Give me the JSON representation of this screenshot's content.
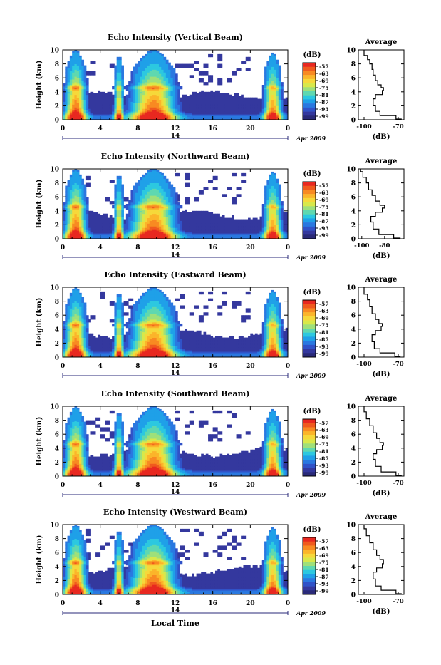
{
  "figure": {
    "xlabel": "Local Time",
    "date_label": "Apr 2009",
    "day_label": "14",
    "colorbar_label": "(dB)",
    "avg_title": "Average",
    "avg_xlabel": "(dB)"
  },
  "colorbar": {
    "ticks": [
      "-57",
      "-63",
      "-69",
      "-75",
      "-81",
      "-87",
      "-93",
      "-99"
    ],
    "colors": [
      "#e82820",
      "#f05a1e",
      "#f88a22",
      "#fbb52a",
      "#f6d83a",
      "#d8e84a",
      "#9fe07a",
      "#5fd8b0",
      "#2cc8e0",
      "#1fa0e8",
      "#2a78e0",
      "#3052c8",
      "#34389e",
      "#2a2a78"
    ]
  },
  "chart_data": [
    {
      "type": "heatmap",
      "title": "Echo Intensity (Vertical Beam)",
      "ylabel": "Height (km)",
      "x_ticks": [
        "0",
        "4",
        "8",
        "12",
        "16",
        "20",
        "0"
      ],
      "xlim": [
        0,
        24
      ],
      "y_ticks": [
        "0",
        "2",
        "4",
        "6",
        "8",
        "10"
      ],
      "ylim": [
        0,
        10
      ],
      "zlim": [
        -99,
        -57
      ],
      "average": {
        "title": "Average",
        "xlabel": "(dB)",
        "x_ticks": [
          "-100",
          "-70"
        ],
        "xlim": [
          -105,
          -65
        ],
        "y_ticks": [
          "0",
          "2",
          "4",
          "6",
          "8",
          "10"
        ],
        "ylim": [
          0,
          10
        ],
        "profile": [
          [
            -67,
            0.1
          ],
          [
            -72,
            0.6
          ],
          [
            -86,
            1.2
          ],
          [
            -90,
            2.0
          ],
          [
            -92,
            3.0
          ],
          [
            -90,
            3.6
          ],
          [
            -84,
            4.2
          ],
          [
            -83,
            4.6
          ],
          [
            -85,
            5.0
          ],
          [
            -88,
            5.6
          ],
          [
            -90,
            6.4
          ],
          [
            -92,
            7.2
          ],
          [
            -93,
            8.0
          ],
          [
            -95,
            8.6
          ],
          [
            -97,
            9.2
          ],
          [
            -100,
            10.0
          ]
        ]
      }
    },
    {
      "type": "heatmap",
      "title": "Echo Intensity (Northward Beam)",
      "ylabel": "Height (km)",
      "x_ticks": [
        "0",
        "4",
        "8",
        "12",
        "16",
        "20",
        "0"
      ],
      "xlim": [
        0,
        24
      ],
      "y_ticks": [
        "0",
        "2",
        "4",
        "6",
        "8",
        "10"
      ],
      "ylim": [
        0,
        10
      ],
      "zlim": [
        -99,
        -57
      ],
      "average": {
        "title": "Average",
        "xlabel": "(dB)",
        "x_ticks": [
          "-100",
          "-80"
        ],
        "xlim": [
          -103,
          -63
        ],
        "y_ticks": [
          "0",
          "2",
          "4",
          "6",
          "8",
          "10"
        ],
        "ylim": [
          0,
          10
        ],
        "profile": [
          [
            -66,
            0.1
          ],
          [
            -72,
            0.6
          ],
          [
            -85,
            1.4
          ],
          [
            -90,
            2.4
          ],
          [
            -92,
            3.2
          ],
          [
            -88,
            3.8
          ],
          [
            -82,
            4.4
          ],
          [
            -80,
            4.8
          ],
          [
            -84,
            5.4
          ],
          [
            -88,
            6.2
          ],
          [
            -91,
            7.0
          ],
          [
            -94,
            8.0
          ],
          [
            -96,
            8.8
          ],
          [
            -99,
            9.6
          ],
          [
            -101,
            10.0
          ]
        ]
      }
    },
    {
      "type": "heatmap",
      "title": "Echo Intensity (Eastward Beam)",
      "ylabel": "Height (km)",
      "x_ticks": [
        "0",
        "4",
        "8",
        "12",
        "16",
        "20",
        "0"
      ],
      "xlim": [
        0,
        24
      ],
      "y_ticks": [
        "0",
        "2",
        "4",
        "6",
        "8",
        "10"
      ],
      "ylim": [
        0,
        10
      ],
      "zlim": [
        -99,
        -57
      ],
      "average": {
        "title": "Average",
        "xlabel": "(dB)",
        "x_ticks": [
          "-100",
          "-70"
        ],
        "xlim": [
          -105,
          -65
        ],
        "y_ticks": [
          "0",
          "2",
          "4",
          "6",
          "8",
          "10"
        ],
        "ylim": [
          0,
          10
        ],
        "profile": [
          [
            -68,
            0.1
          ],
          [
            -73,
            0.6
          ],
          [
            -86,
            1.2
          ],
          [
            -91,
            2.2
          ],
          [
            -93,
            3.2
          ],
          [
            -90,
            3.8
          ],
          [
            -85,
            4.4
          ],
          [
            -84,
            4.8
          ],
          [
            -87,
            5.4
          ],
          [
            -90,
            6.2
          ],
          [
            -93,
            7.2
          ],
          [
            -95,
            8.2
          ],
          [
            -97,
            9.0
          ],
          [
            -100,
            10.0
          ]
        ]
      }
    },
    {
      "type": "heatmap",
      "title": "Echo Intensity (Southward Beam)",
      "ylabel": "Height (km)",
      "x_ticks": [
        "0",
        "4",
        "8",
        "12",
        "16",
        "20",
        "0"
      ],
      "xlim": [
        0,
        24
      ],
      "y_ticks": [
        "0",
        "2",
        "4",
        "6",
        "8",
        "10"
      ],
      "ylim": [
        0,
        10
      ],
      "zlim": [
        -99,
        -57
      ],
      "average": {
        "title": "Average",
        "xlabel": "(dB)",
        "x_ticks": [
          "-100",
          "-70"
        ],
        "xlim": [
          -105,
          -65
        ],
        "y_ticks": [
          "0",
          "2",
          "4",
          "6",
          "8",
          "10"
        ],
        "ylim": [
          0,
          10
        ],
        "profile": [
          [
            -67,
            0.1
          ],
          [
            -72,
            0.6
          ],
          [
            -85,
            1.4
          ],
          [
            -90,
            2.4
          ],
          [
            -92,
            3.2
          ],
          [
            -89,
            3.8
          ],
          [
            -84,
            4.4
          ],
          [
            -83,
            4.8
          ],
          [
            -86,
            5.4
          ],
          [
            -89,
            6.2
          ],
          [
            -92,
            7.2
          ],
          [
            -95,
            8.2
          ],
          [
            -98,
            9.2
          ],
          [
            -100,
            10.0
          ]
        ]
      }
    },
    {
      "type": "heatmap",
      "title": "Echo Intensity (Westward Beam)",
      "ylabel": "Height (km)",
      "x_ticks": [
        "0",
        "4",
        "8",
        "12",
        "16",
        "20",
        "0"
      ],
      "xlim": [
        0,
        24
      ],
      "y_ticks": [
        "0",
        "2",
        "4",
        "6",
        "8",
        "10"
      ],
      "ylim": [
        0,
        10
      ],
      "zlim": [
        -99,
        -57
      ],
      "average": {
        "title": "Average",
        "xlabel": "(dB)",
        "x_ticks": [
          "-100",
          "-70"
        ],
        "xlim": [
          -105,
          -65
        ],
        "y_ticks": [
          "0",
          "2",
          "4",
          "6",
          "8",
          "10"
        ],
        "ylim": [
          0,
          10
        ],
        "profile": [
          [
            -67,
            0.1
          ],
          [
            -72,
            0.6
          ],
          [
            -85,
            1.2
          ],
          [
            -90,
            2.2
          ],
          [
            -92,
            3.2
          ],
          [
            -89,
            3.8
          ],
          [
            -84,
            4.4
          ],
          [
            -83,
            5.0
          ],
          [
            -86,
            5.6
          ],
          [
            -89,
            6.4
          ],
          [
            -92,
            7.4
          ],
          [
            -95,
            8.4
          ],
          [
            -98,
            9.4
          ],
          [
            -100,
            10.0
          ]
        ]
      }
    }
  ]
}
